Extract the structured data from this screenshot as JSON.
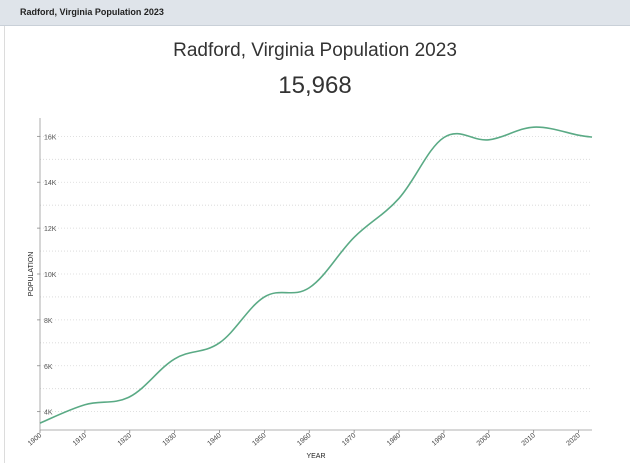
{
  "panel": {
    "header_title": "Radford, Virginia Population 2023"
  },
  "chart_data": {
    "type": "line",
    "title": "Radford, Virginia Population 2023",
    "headline_value": "15,968",
    "xlabel": "YEAR",
    "ylabel": "POPULATION",
    "x_ticks": [
      "1900",
      "1910",
      "1920",
      "1930",
      "1940",
      "1950",
      "1960",
      "1970",
      "1980",
      "1990",
      "2000",
      "2010",
      "2020"
    ],
    "y_ticks": [
      "4K",
      "6K",
      "8K",
      "10K",
      "12K",
      "14K",
      "16K"
    ],
    "xlim": [
      1900,
      2023
    ],
    "ylim": [
      3200,
      16800
    ],
    "grid": true,
    "line_color": "#5aaa85",
    "series": [
      {
        "x": [
          1900,
          1910,
          1920,
          1930,
          1940,
          1950,
          1960,
          1970,
          1980,
          1990,
          2000,
          2010,
          2020,
          2023
        ],
        "values": [
          3500,
          4300,
          4650,
          6300,
          7000,
          9000,
          9400,
          11600,
          13300,
          15950,
          15850,
          16400,
          16050,
          15968
        ]
      }
    ]
  }
}
